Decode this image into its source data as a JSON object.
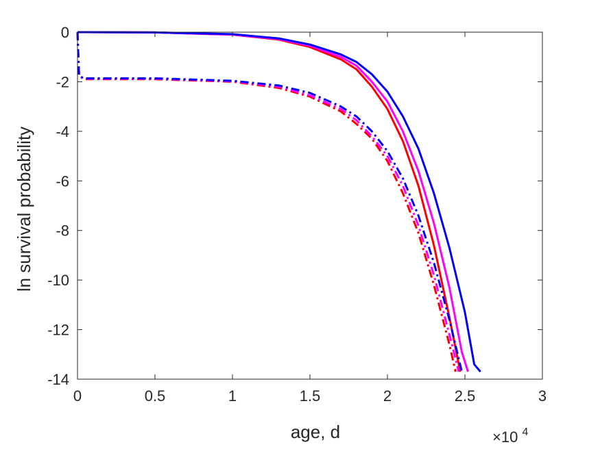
{
  "chart_data": {
    "type": "line",
    "xlabel": "age, d",
    "ylabel": "ln survival probability",
    "x_exponent_label": {
      "base": "×10",
      "power": "4"
    },
    "xlim": [
      0,
      3
    ],
    "ylim": [
      -14,
      0
    ],
    "xticks": [
      "0",
      "0.5",
      "1",
      "1.5",
      "2",
      "2.5",
      "3"
    ],
    "yticks": [
      "0",
      "-2",
      "-4",
      "-6",
      "-8",
      "-10",
      "-12",
      "-14"
    ],
    "grid": false,
    "legend": "none",
    "series": [
      {
        "color": "#ff0000",
        "style": "solid",
        "points": [
          [
            0,
            0
          ],
          [
            0.5,
            -0.01
          ],
          [
            1,
            -0.1
          ],
          [
            1.3,
            -0.3
          ],
          [
            1.5,
            -0.6
          ],
          [
            1.7,
            -1.1
          ],
          [
            1.8,
            -1.5
          ],
          [
            1.9,
            -2.2
          ],
          [
            2.0,
            -3.1
          ],
          [
            2.1,
            -4.4
          ],
          [
            2.2,
            -6.2
          ],
          [
            2.3,
            -8.6
          ],
          [
            2.4,
            -11.5
          ],
          [
            2.47,
            -13.7
          ]
        ]
      },
      {
        "color": "#ff00ff",
        "style": "solid",
        "points": [
          [
            0,
            0
          ],
          [
            0.5,
            -0.01
          ],
          [
            1,
            -0.1
          ],
          [
            1.3,
            -0.28
          ],
          [
            1.5,
            -0.55
          ],
          [
            1.7,
            -1.0
          ],
          [
            1.8,
            -1.35
          ],
          [
            1.9,
            -2.0
          ],
          [
            2.0,
            -2.8
          ],
          [
            2.1,
            -4.0
          ],
          [
            2.2,
            -5.6
          ],
          [
            2.3,
            -7.7
          ],
          [
            2.4,
            -10.3
          ],
          [
            2.48,
            -12.9
          ],
          [
            2.52,
            -13.7
          ]
        ]
      },
      {
        "color": "#0000ff",
        "style": "solid",
        "points": [
          [
            0,
            0
          ],
          [
            0.5,
            -0.01
          ],
          [
            1,
            -0.08
          ],
          [
            1.3,
            -0.25
          ],
          [
            1.5,
            -0.5
          ],
          [
            1.7,
            -0.9
          ],
          [
            1.8,
            -1.2
          ],
          [
            1.9,
            -1.7
          ],
          [
            2.0,
            -2.4
          ],
          [
            2.1,
            -3.4
          ],
          [
            2.2,
            -4.7
          ],
          [
            2.3,
            -6.5
          ],
          [
            2.4,
            -8.7
          ],
          [
            2.5,
            -11.3
          ],
          [
            2.56,
            -13.4
          ],
          [
            2.6,
            -13.7
          ]
        ]
      },
      {
        "color": "#ff0000",
        "style": "dashdot",
        "points": [
          [
            0,
            0
          ],
          [
            0.01,
            -1.75
          ],
          [
            0.04,
            -1.9
          ],
          [
            0.5,
            -1.9
          ],
          [
            1,
            -2.0
          ],
          [
            1.3,
            -2.25
          ],
          [
            1.5,
            -2.6
          ],
          [
            1.7,
            -3.2
          ],
          [
            1.8,
            -3.7
          ],
          [
            1.9,
            -4.3
          ],
          [
            2.0,
            -5.2
          ],
          [
            2.1,
            -6.5
          ],
          [
            2.2,
            -8.1
          ],
          [
            2.3,
            -10.2
          ],
          [
            2.4,
            -12.6
          ],
          [
            2.44,
            -13.7
          ]
        ]
      },
      {
        "color": "#ff00ff",
        "style": "dashdot",
        "points": [
          [
            0,
            0
          ],
          [
            0.01,
            -1.75
          ],
          [
            0.04,
            -1.88
          ],
          [
            0.5,
            -1.88
          ],
          [
            1,
            -1.98
          ],
          [
            1.3,
            -2.2
          ],
          [
            1.5,
            -2.55
          ],
          [
            1.7,
            -3.1
          ],
          [
            1.8,
            -3.55
          ],
          [
            1.9,
            -4.2
          ],
          [
            2.0,
            -5.0
          ],
          [
            2.1,
            -6.2
          ],
          [
            2.2,
            -7.8
          ],
          [
            2.3,
            -9.8
          ],
          [
            2.4,
            -12.2
          ],
          [
            2.46,
            -13.7
          ]
        ]
      },
      {
        "color": "#0000ff",
        "style": "dashdot",
        "points": [
          [
            0,
            0
          ],
          [
            0.01,
            -1.75
          ],
          [
            0.04,
            -1.86
          ],
          [
            0.5,
            -1.86
          ],
          [
            1,
            -1.96
          ],
          [
            1.3,
            -2.15
          ],
          [
            1.5,
            -2.45
          ],
          [
            1.7,
            -3.0
          ],
          [
            1.8,
            -3.4
          ],
          [
            1.9,
            -4.0
          ],
          [
            2.0,
            -4.8
          ],
          [
            2.1,
            -5.9
          ],
          [
            2.2,
            -7.4
          ],
          [
            2.3,
            -9.3
          ],
          [
            2.4,
            -11.6
          ],
          [
            2.48,
            -13.7
          ]
        ]
      }
    ]
  }
}
